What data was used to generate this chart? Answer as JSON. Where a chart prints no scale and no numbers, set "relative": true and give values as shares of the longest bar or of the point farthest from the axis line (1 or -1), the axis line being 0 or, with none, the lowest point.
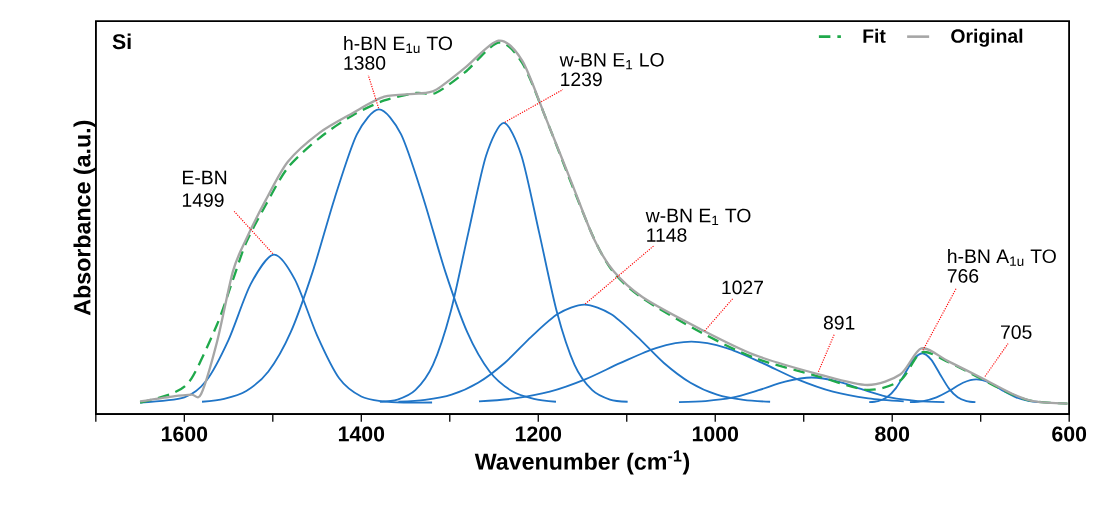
{
  "chart_data": {
    "type": "line",
    "relative": true,
    "title": "Si",
    "xlabel": "Wavenumber (cm$^{-1}$)",
    "ylabel": "Absorbance (a.u.)",
    "xlim": [
      1700,
      600
    ],
    "xticks": [
      {
        "value": 1700,
        "label": null
      },
      1600,
      {
        "value": 1500,
        "label": null
      },
      1400,
      {
        "value": 1300,
        "label": null
      },
      1200,
      {
        "value": 1100,
        "label": null
      },
      1000,
      {
        "value": 900,
        "label": null
      },
      800,
      {
        "value": 700,
        "label": null
      },
      600
    ],
    "legend": "top right",
    "series": [
      {
        "color": "#2075c7",
        "x": [
          1650,
          1600,
          1575,
          1550,
          1525,
          1499,
          1475,
          1450,
          1425,
          1400,
          1375,
          1350,
          1320
        ],
        "values": [
          0.031,
          0.045,
          0.09,
          0.199,
          0.348,
          0.427,
          0.36,
          0.211,
          0.096,
          0.047,
          0.034,
          0.031,
          0.031
        ]
      },
      {
        "color": "#2075c7",
        "x": [
          1580,
          1555,
          1530,
          1505,
          1480,
          1455,
          1430,
          1405,
          1380,
          1355,
          1330,
          1305,
          1280,
          1255,
          1230,
          1205,
          1180
        ],
        "values": [
          0.033,
          0.041,
          0.062,
          0.114,
          0.218,
          0.381,
          0.579,
          0.749,
          0.816,
          0.749,
          0.579,
          0.381,
          0.218,
          0.114,
          0.062,
          0.041,
          0.033
        ]
      },
      {
        "color": "#2075c7",
        "x": [
          1379,
          1359,
          1339,
          1319,
          1299,
          1279,
          1259,
          1239,
          1219,
          1199,
          1179,
          1159,
          1139,
          1119,
          1099
        ],
        "values": [
          0.033,
          0.039,
          0.064,
          0.132,
          0.274,
          0.486,
          0.692,
          0.78,
          0.692,
          0.486,
          0.274,
          0.132,
          0.064,
          0.039,
          0.033
        ]
      },
      {
        "color": "#2075c7",
        "x": [
          1358,
          1328,
          1298,
          1268,
          1238,
          1208,
          1178,
          1148,
          1118,
          1088,
          1058,
          1028,
          998,
          968,
          938
        ],
        "values": [
          0.033,
          0.038,
          0.052,
          0.084,
          0.137,
          0.207,
          0.268,
          0.293,
          0.268,
          0.207,
          0.137,
          0.084,
          0.052,
          0.038,
          0.033
        ]
      },
      {
        "color": "#2075c7",
        "x": [
          1267,
          1227,
          1187,
          1147,
          1107,
          1067,
          1027,
          987,
          947,
          907,
          867,
          827,
          787
        ],
        "values": [
          0.034,
          0.042,
          0.06,
          0.093,
          0.137,
          0.177,
          0.194,
          0.177,
          0.137,
          0.093,
          0.06,
          0.042,
          0.034
        ]
      },
      {
        "color": "#2075c7",
        "x": [
          1041,
          1011,
          981,
          951,
          921,
          891,
          861,
          831,
          801,
          771,
          741
        ],
        "values": [
          0.032,
          0.035,
          0.044,
          0.064,
          0.087,
          0.098,
          0.087,
          0.064,
          0.044,
          0.035,
          0.032
        ]
      },
      {
        "color": "#2075c7",
        "x": [
          826,
          816,
          806,
          796,
          786,
          776,
          766,
          756,
          746,
          736,
          726,
          716,
          706
        ],
        "values": [
          0.032,
          0.035,
          0.045,
          0.069,
          0.107,
          0.146,
          0.163,
          0.146,
          0.107,
          0.069,
          0.045,
          0.035,
          0.032
        ]
      },
      {
        "color": "#2075c7",
        "x": [
          780,
          765,
          750,
          735,
          720,
          705,
          690,
          675,
          660,
          645,
          630
        ],
        "values": [
          0.032,
          0.035,
          0.045,
          0.063,
          0.084,
          0.093,
          0.084,
          0.063,
          0.045,
          0.035,
          0.032
        ]
      },
      {
        "name": "Fit",
        "color": "#1fa94b",
        "line_style": "dashed",
        "x": [
          1650,
          1614,
          1592,
          1563,
          1545,
          1530,
          1508,
          1483,
          1447,
          1410,
          1374,
          1338,
          1316,
          1283,
          1245,
          1218,
          1191,
          1163,
          1137,
          1115,
          1082,
          1017,
          955,
          882,
          828,
          791,
          767,
          737,
          700,
          664,
          639,
          602
        ],
        "values": [
          0.031,
          0.055,
          0.095,
          0.24,
          0.36,
          0.46,
          0.56,
          0.66,
          0.74,
          0.8,
          0.84,
          0.86,
          0.86,
          0.915,
          0.995,
          0.94,
          0.79,
          0.62,
          0.47,
          0.38,
          0.31,
          0.22,
          0.15,
          0.1,
          0.065,
          0.09,
          0.165,
          0.14,
          0.095,
          0.052,
          0.034,
          0.028
        ]
      },
      {
        "name": "Original",
        "color": "#a6a6a6",
        "x": [
          1650,
          1614,
          1592,
          1581,
          1563,
          1545,
          1530,
          1508,
          1483,
          1447,
          1410,
          1374,
          1338,
          1316,
          1283,
          1245,
          1218,
          1191,
          1163,
          1137,
          1115,
          1082,
          1017,
          955,
          882,
          828,
          791,
          767,
          737,
          700,
          664,
          639,
          602
        ],
        "values": [
          0.034,
          0.047,
          0.052,
          0.054,
          0.194,
          0.383,
          0.469,
          0.573,
          0.676,
          0.754,
          0.806,
          0.85,
          0.858,
          0.868,
          0.927,
          1.0,
          0.946,
          0.79,
          0.624,
          0.469,
          0.383,
          0.313,
          0.228,
          0.158,
          0.106,
          0.078,
          0.106,
          0.176,
          0.142,
          0.098,
          0.054,
          0.034,
          0.028
        ]
      }
    ],
    "annotations": [
      {
        "text": "E-BN 1499",
        "x": 1499,
        "y": 0.427
      },
      "h-BN E$_{1u}$ TO",
      {
        "text": "1380",
        "x": 1380,
        "y": 0.816
      },
      "w-BN E$_{1}$ LO",
      {
        "text": "1239",
        "x": 1239,
        "y": 0.78
      },
      "w-BN E$_{1}$ TO",
      {
        "text": "1148",
        "x": 1148,
        "y": 0.293
      },
      {
        "text": "1027",
        "x": 1013,
        "y": 0.22
      },
      {
        "text": "891",
        "x": 884,
        "y": 0.11
      },
      "h-BN A$_{1u}$ TO",
      {
        "text": "766",
        "x": 766,
        "y": 0.168
      },
      {
        "text": "705",
        "x": 696,
        "y": 0.098
      }
    ]
  }
}
